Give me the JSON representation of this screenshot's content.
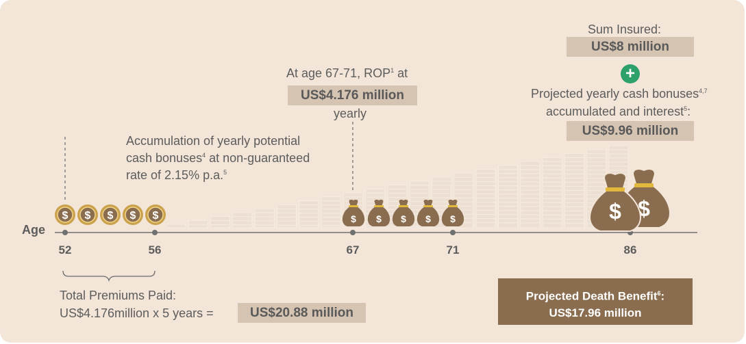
{
  "age_label": "Age",
  "age_markers": [
    "52",
    "56",
    "67",
    "71",
    "86"
  ],
  "annotations": {
    "rop_line1": "At age 67-71, ROP",
    "rop_sup": "1",
    "rop_line1_end": " at",
    "rop_amount": "US$4.176 million",
    "rop_line3": "yearly",
    "accum_line1": "Accumulation of yearly potential",
    "accum_line2": "cash bonuses",
    "accum_sup2": "4",
    "accum_line2_end": " at non-guaranteed",
    "accum_line3": "rate of 2.15% p.a.",
    "accum_sup3": "5",
    "sum_insured_label": "Sum Insured:",
    "sum_insured_amount": "US$8 million",
    "plus_symbol": "+",
    "bonus_line1": "Projected yearly cash bonuses",
    "bonus_sup1": "4,7",
    "bonus_line2": "accumulated and interest",
    "bonus_sup2": "5",
    "bonus_line2_end": ":",
    "bonus_amount": "US$9.96 million"
  },
  "premiums": {
    "label": "Total Premiums Paid:",
    "formula": "US$4.176million x 5 years =",
    "amount": "US$20.88 million"
  },
  "death_benefit": {
    "label": "Projected Death Benefit",
    "sup": "6",
    "label_end": ":",
    "amount": "US$17.96 million"
  },
  "icons": {
    "coin": "dollar-coin-icon",
    "small_bag": "money-bag-icon",
    "large_bag": "large-money-bag-icon",
    "plus": "plus-circle-icon",
    "brace": "curly-brace"
  },
  "colors": {
    "background": "#f3e5d8",
    "bar": "#ede0d3",
    "highlight": "#d6c4b3",
    "bag": "#8a6d4f",
    "coin_gold": "#caa24b",
    "bag_tie": "#e2b83c",
    "plus_green": "#2ea06a",
    "axis": "#707070"
  }
}
